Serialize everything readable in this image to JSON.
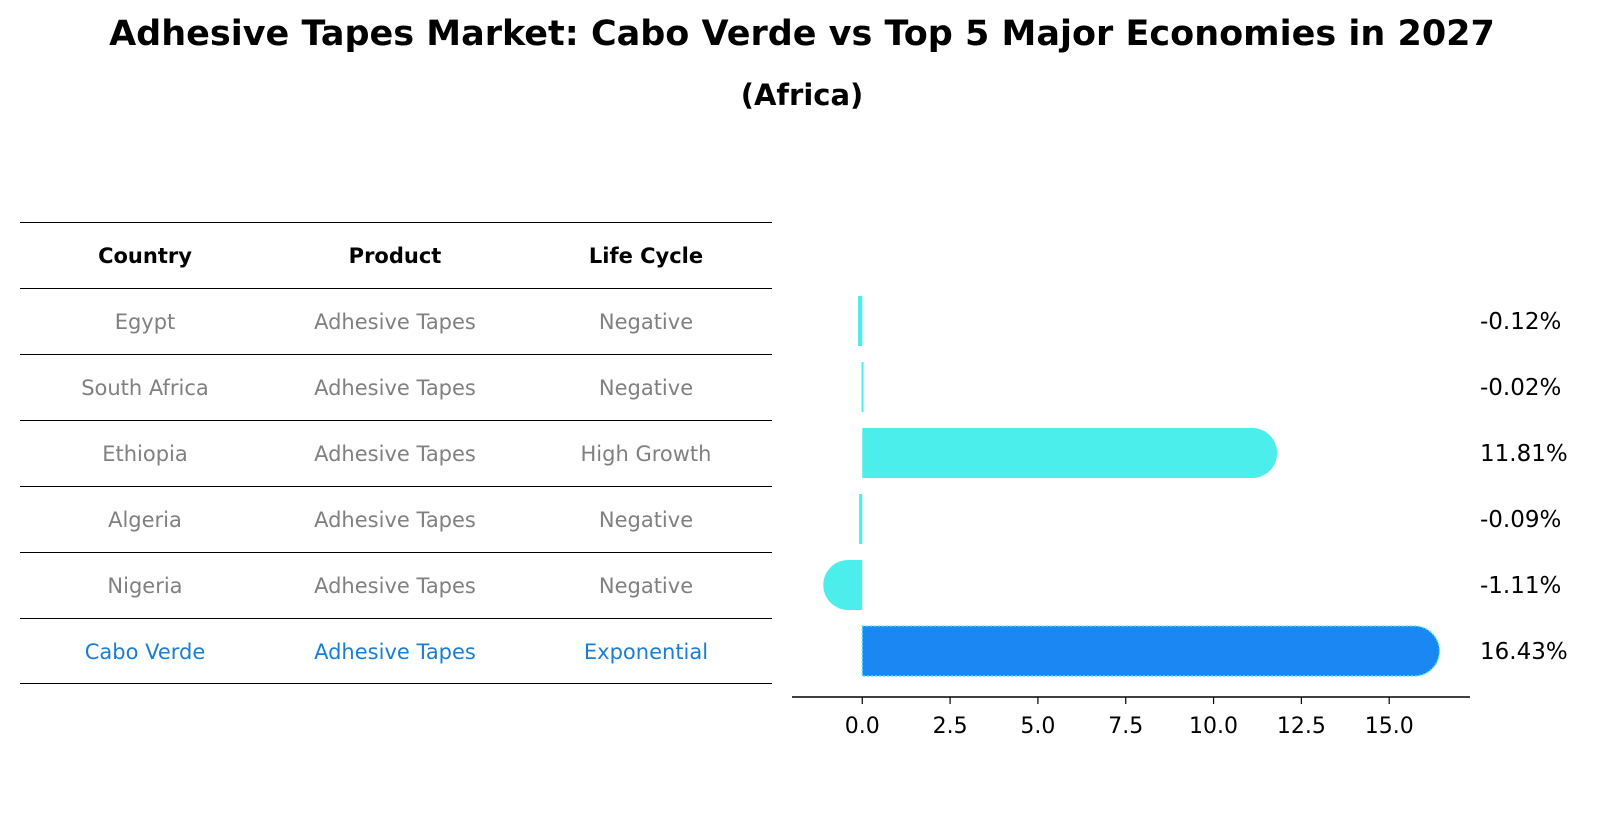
{
  "title": "Adhesive Tapes Market: Cabo Verde vs Top 5 Major Economies in 2027",
  "subtitle": "(Africa)",
  "table": {
    "headers": [
      "Country",
      "Product",
      "Life Cycle"
    ],
    "rows": [
      {
        "country": "Egypt",
        "product": "Adhesive Tapes",
        "life_cycle": "Negative"
      },
      {
        "country": "South Africa",
        "product": "Adhesive Tapes",
        "life_cycle": "Negative"
      },
      {
        "country": "Ethiopia",
        "product": "Adhesive Tapes",
        "life_cycle": "High Growth"
      },
      {
        "country": "Algeria",
        "product": "Adhesive Tapes",
        "life_cycle": "Negative"
      },
      {
        "country": "Nigeria",
        "product": "Adhesive Tapes",
        "life_cycle": "Negative"
      },
      {
        "country": "Cabo Verde",
        "product": "Adhesive Tapes",
        "life_cycle": "Exponential"
      }
    ]
  },
  "chart_data": {
    "type": "bar",
    "orientation": "horizontal",
    "categories": [
      "Egypt",
      "South Africa",
      "Ethiopia",
      "Algeria",
      "Nigeria",
      "Cabo Verde"
    ],
    "values": [
      -0.12,
      -0.02,
      11.81,
      -0.09,
      -1.11,
      16.43
    ],
    "value_labels": [
      "-0.12%",
      "-0.02%",
      "11.81%",
      "-0.09%",
      "-1.11%",
      "16.43%"
    ],
    "x_ticks": [
      "0.0",
      "2.5",
      "5.0",
      "7.5",
      "10.0",
      "12.5",
      "15.0"
    ],
    "x_tick_values": [
      0,
      2.5,
      5,
      7.5,
      10,
      12.5,
      15
    ],
    "xlim": [
      -2.0,
      17.3
    ],
    "xlabel": "",
    "ylabel": "",
    "grid": false,
    "colors": {
      "default": "#4beeeb",
      "highlight": "#1a87f2"
    },
    "highlight_index": 5
  }
}
